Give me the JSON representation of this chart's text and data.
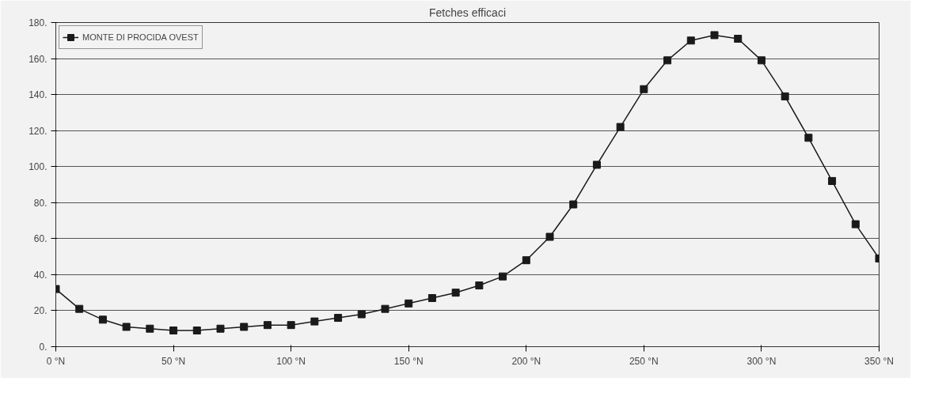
{
  "chart_data": {
    "type": "line",
    "title": "Fetches efficaci",
    "x": [
      0,
      10,
      20,
      30,
      40,
      50,
      60,
      70,
      80,
      90,
      100,
      110,
      120,
      130,
      140,
      150,
      160,
      170,
      180,
      190,
      200,
      210,
      220,
      230,
      240,
      250,
      260,
      270,
      280,
      290,
      300,
      310,
      320,
      330,
      340,
      350
    ],
    "series": [
      {
        "name": "MONTE DI PROCIDA OVEST",
        "color": "#1a1a1a",
        "values": [
          32,
          21,
          15,
          11,
          10,
          9,
          9,
          10,
          11,
          12,
          12,
          14,
          16,
          18,
          21,
          24,
          27,
          30,
          34,
          39,
          48,
          61,
          79,
          101,
          122,
          143,
          159,
          170,
          173,
          171,
          159,
          139,
          116,
          92,
          68,
          49
        ]
      }
    ],
    "xlim": [
      0,
      350
    ],
    "xticks": [
      {
        "value": 0,
        "label": "0 °N"
      },
      {
        "value": 50,
        "label": "50 °N"
      },
      {
        "value": 100,
        "label": "100 °N"
      },
      {
        "value": 150,
        "label": "150 °N"
      },
      {
        "value": 200,
        "label": "200 °N"
      },
      {
        "value": 250,
        "label": "250 °N"
      },
      {
        "value": 300,
        "label": "300 °N"
      },
      {
        "value": 350,
        "label": "350 °N"
      }
    ],
    "ylim": [
      0,
      180
    ],
    "yticks": [
      {
        "value": 0,
        "label": "0."
      },
      {
        "value": 20,
        "label": "20."
      },
      {
        "value": 40,
        "label": "40."
      },
      {
        "value": 60,
        "label": "60."
      },
      {
        "value": 80,
        "label": "80."
      },
      {
        "value": 100,
        "label": "100."
      },
      {
        "value": 120,
        "label": "120."
      },
      {
        "value": 140,
        "label": "140."
      },
      {
        "value": 160,
        "label": "160."
      },
      {
        "value": 180,
        "label": "180."
      }
    ],
    "grid": "y",
    "legend": "top left",
    "marker": "square",
    "line_style": "solid"
  }
}
